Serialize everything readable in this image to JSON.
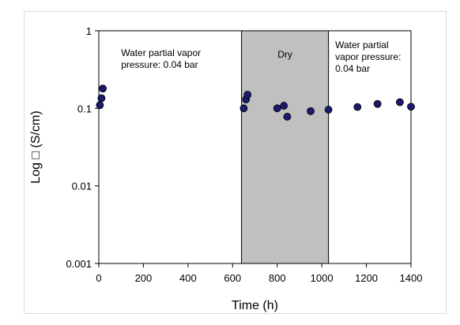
{
  "chart_data": {
    "type": "scatter",
    "xlabel": "Time (h)",
    "ylabel": "Log □ (S/cm)",
    "xlim": [
      0,
      1400
    ],
    "ylim": [
      0.001,
      1
    ],
    "y_scale": "log",
    "x_ticks": [
      0,
      200,
      400,
      600,
      800,
      1000,
      1200,
      1400
    ],
    "y_ticks": [
      0.001,
      0.01,
      0.1,
      1
    ],
    "x_tick_labels": [
      "0",
      "200",
      "400",
      "600",
      "800",
      "1000",
      "1200",
      "1400"
    ],
    "y_tick_labels": [
      "0.001",
      "0.01",
      "0.1",
      "1"
    ],
    "grid": false,
    "legend": "none",
    "shaded_region": {
      "x_start": 640,
      "x_end": 1030,
      "label": "Dry",
      "color": "#c0c0c0"
    },
    "annotations": [
      {
        "lines": [
          "Water partial vapor",
          "pressure: 0.04 bar"
        ],
        "x": 100,
        "y": 0.47
      },
      {
        "lines": [
          "Water partial",
          "vapor pressure:",
          "0.04 bar"
        ],
        "x": 1060,
        "y": 0.6
      }
    ],
    "marker_color": "#1a1a6e",
    "series": [
      {
        "x": [
          5,
          12,
          18,
          650,
          660,
          667,
          800,
          830,
          845,
          950,
          1030,
          1160,
          1250,
          1350,
          1400
        ],
        "y": [
          0.11,
          0.135,
          0.18,
          0.1,
          0.13,
          0.15,
          0.1,
          0.108,
          0.078,
          0.092,
          0.096,
          0.104,
          0.114,
          0.12,
          0.105
        ]
      }
    ]
  }
}
